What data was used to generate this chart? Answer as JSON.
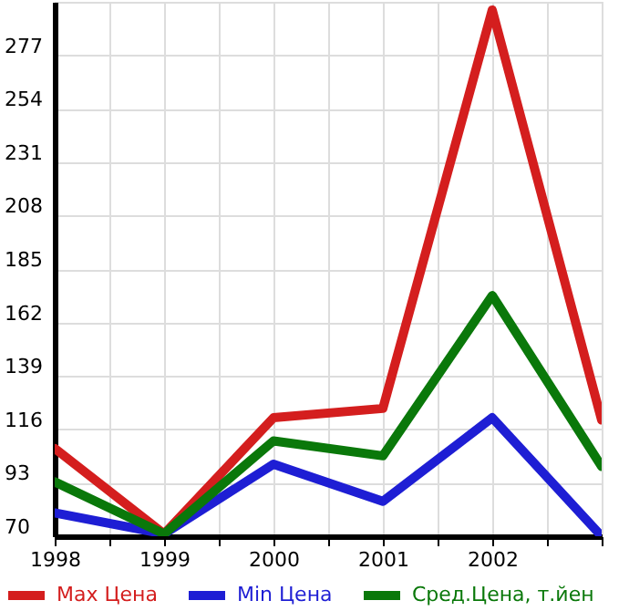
{
  "chart_data": {
    "type": "line",
    "x": [
      1998,
      1999,
      2000,
      2001,
      2002,
      2003
    ],
    "series": [
      {
        "name": "Max Цена",
        "color": "#d41e1e",
        "values": [
          107.8,
          71,
          121,
          125,
          296.5,
          120
        ]
      },
      {
        "name": "Min Цена",
        "color": "#1e1ed4",
        "values": [
          80,
          71,
          101,
          85,
          121,
          70
        ]
      },
      {
        "name": "Сред.Цена, т.йен",
        "color": "#0a780a",
        "values": [
          93.4,
          71,
          111,
          104.6,
          173.6,
          100
        ]
      }
    ],
    "xlim": [
      1998,
      2003
    ],
    "xticks": [
      1998,
      {
        "value": 1998.5,
        "label": null
      },
      1999,
      {
        "value": 1999.5,
        "label": null
      },
      2000,
      {
        "value": 2000.5,
        "label": null
      },
      2001,
      {
        "value": 2001.5,
        "label": null
      },
      2002,
      {
        "value": 2002.5,
        "label": null
      },
      {
        "value": 2003,
        "label": null
      }
    ],
    "ylim": [
      70,
      300
    ],
    "yticks": [
      70,
      93,
      116,
      139,
      162,
      185,
      208,
      231,
      254,
      277
    ],
    "grid": true,
    "legend": "bottom",
    "line_style": "solid",
    "marker": "none"
  }
}
